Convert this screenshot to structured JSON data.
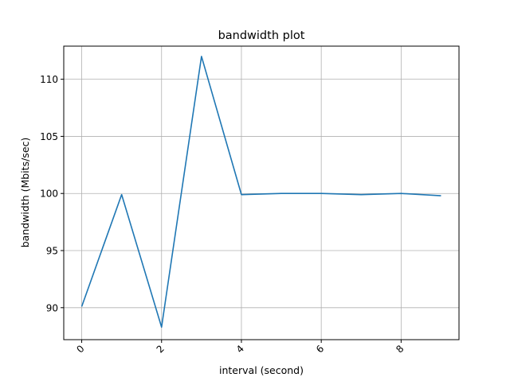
{
  "chart_data": {
    "type": "line",
    "title": "bandwidth plot",
    "xlabel": "interval (second)",
    "ylabel": "bandwidth (Mbits/sec)",
    "xlim": [
      -0.45,
      9.45
    ],
    "ylim": [
      87.2,
      112.9
    ],
    "xticks": [
      0,
      2,
      4,
      6,
      8
    ],
    "xtick_labels": [
      "0",
      "2",
      "4",
      "6",
      "8"
    ],
    "xtick_rotation": 45,
    "yticks": [
      90,
      95,
      100,
      105,
      110
    ],
    "ytick_labels": [
      "90",
      "95",
      "100",
      "105",
      "110"
    ],
    "grid": true,
    "color": "#1f77b4",
    "series": [
      {
        "x": [
          0,
          1,
          2,
          3,
          4,
          5,
          6,
          7,
          8,
          9
        ],
        "y": [
          90.1,
          99.9,
          88.3,
          112.0,
          99.9,
          100.0,
          100.0,
          99.9,
          100.0,
          99.8
        ]
      }
    ]
  }
}
